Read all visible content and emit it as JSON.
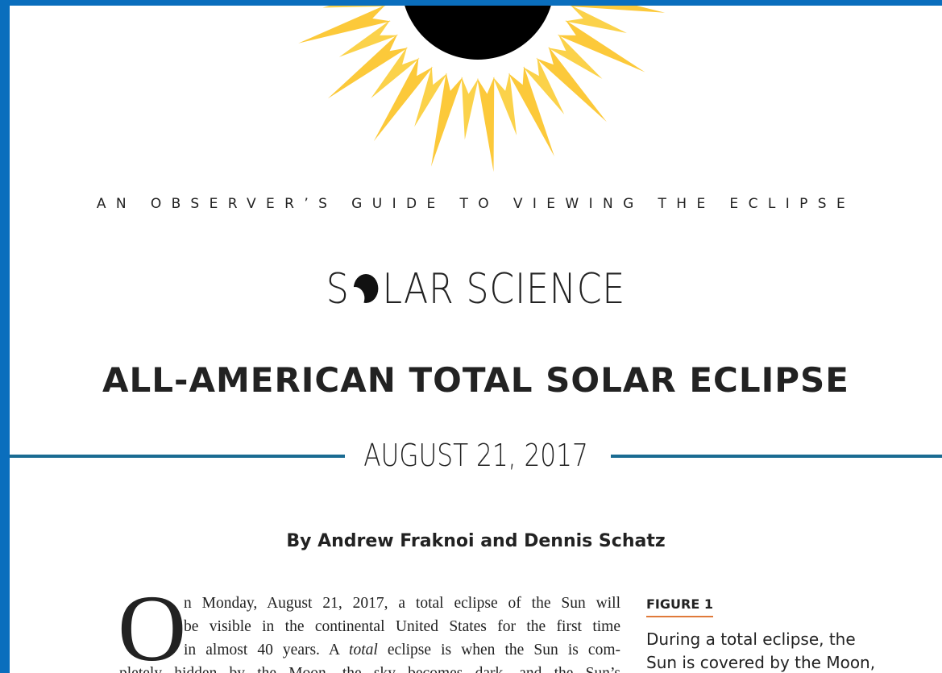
{
  "header": {
    "kicker": "AN OBSERVER’S GUIDE TO VIEWING THE ECLIPSE",
    "logo_start": "S",
    "logo_end": "LAR SCIENCE"
  },
  "title": "ALL-AMERICAN TOTAL SOLAR ECLIPSE",
  "date": "AUGUST 21, 2017",
  "byline": "By Andrew Fraknoi and Dennis Schatz",
  "body": {
    "drop_cap": "O",
    "lines": [
      [
        "n Monday, August 21, 2017, a total eclipse of the Sun will"
      ],
      [
        "be visible in the continental United States for the first time"
      ],
      [
        "in almost 40 years. A ",
        "total",
        " eclipse is when the Sun is com-"
      ],
      [
        "pletely hidden by the Moon, the sky becomes dark, and the Sun’s"
      ]
    ]
  },
  "figure": {
    "label": "FIGURE 1",
    "caption_lines": [
      "During a total eclipse, the",
      "Sun is covered by the Moon,"
    ]
  }
}
